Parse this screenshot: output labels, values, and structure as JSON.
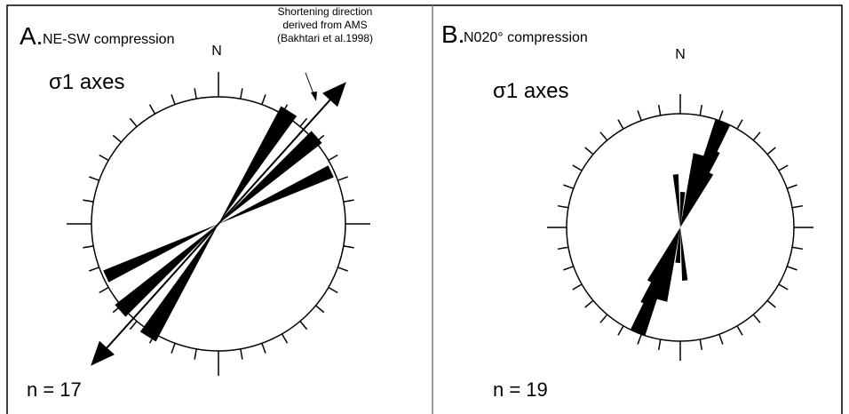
{
  "panels": [
    {
      "letter": "A.",
      "title": "NE-SW compression",
      "axis_label": "σ1 axes",
      "north": "N",
      "n_label": "n = 17"
    },
    {
      "letter": "B.",
      "title": "N020° compression",
      "axis_label": "σ1 axes",
      "north": "N",
      "n_label": "n = 19"
    }
  ],
  "annotation": {
    "lines": [
      "Shortening direction",
      "derived from AMS",
      "(Bakhtari et al.1998)"
    ]
  }
}
